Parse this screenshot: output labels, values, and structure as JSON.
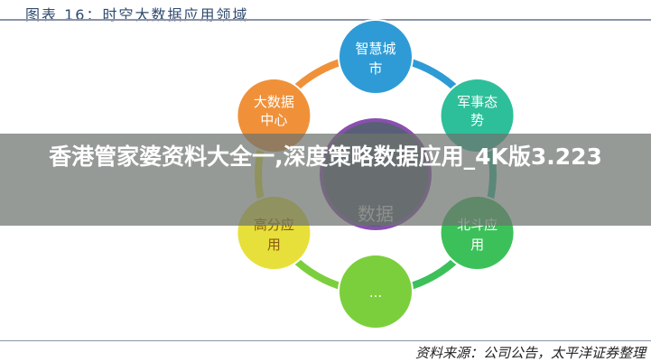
{
  "title": "图表 16：时空大数据应用领域",
  "source": "资料来源：公司公告，太平洋证券整理",
  "banner": "香港管家婆资料大全一,深度策略数据应用_4K版3.223",
  "center": {
    "label": "数据",
    "color": "#5a5f78"
  },
  "nodes": [
    {
      "label1": "智慧城",
      "label2": "市",
      "color": "#2e9bd6"
    },
    {
      "label1": "军事态",
      "label2": "势",
      "color": "#2dbf9a"
    },
    {
      "label1": "北斗应",
      "label2": "用",
      "color": "#3cc15a"
    },
    {
      "label1": "...",
      "label2": "",
      "color": "#7ccf3c"
    },
    {
      "label1": "高分应",
      "label2": "用",
      "color": "#e8e03a"
    },
    {
      "label1": "大数据",
      "label2": "中心",
      "color": "#f0913a"
    }
  ]
}
